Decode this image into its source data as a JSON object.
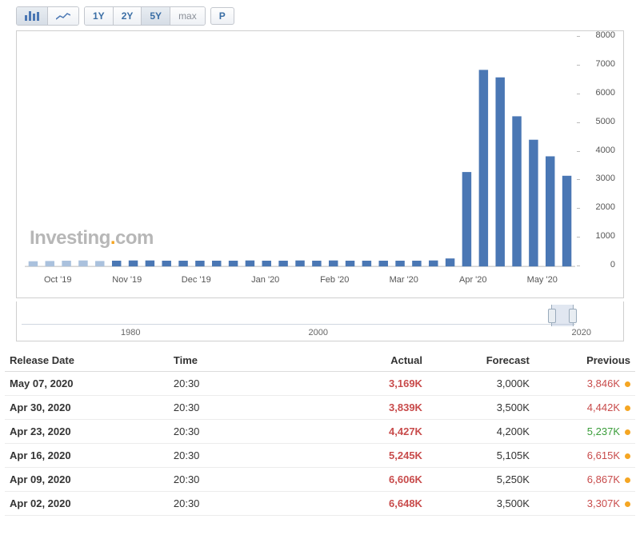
{
  "toolbar": {
    "charttype": {
      "bar": "bar",
      "line": "line",
      "active": "bar"
    },
    "ranges": [
      "1Y",
      "2Y",
      "5Y",
      "max"
    ],
    "active_range": "5Y",
    "P": "P"
  },
  "chart": {
    "type": "bar",
    "ylim": [
      0,
      8000
    ],
    "ytick_step": 1000,
    "x_labels": [
      "Oct '19",
      "Nov '19",
      "Dec '19",
      "Jan '20",
      "Feb '20",
      "Mar '20",
      "Apr '20",
      "May '20"
    ],
    "bar_color": "#4a77b4",
    "bar_color_faded": "#aac1dd",
    "background_color": "#ffffff",
    "border_color": "#cfcfcf",
    "axis_text_color": "#555555",
    "bar_width": 0.55,
    "watermark_text": "Investing.com",
    "watermark_colors": {
      "Investing": "#b7b7b7",
      "dot": "#f5a623",
      "com": "#b7b7b7"
    },
    "data": [
      180,
      190,
      200,
      210,
      190,
      200,
      210,
      210,
      200,
      200,
      200,
      200,
      200,
      210,
      200,
      200,
      210,
      200,
      210,
      200,
      200,
      200,
      200,
      200,
      210,
      280,
      3300,
      6870,
      6610,
      5250,
      4430,
      3850,
      3170
    ],
    "range_selector": {
      "labels": [
        "1980",
        "2000",
        "2020"
      ]
    }
  },
  "table": {
    "columns": [
      "Release Date",
      "Time",
      "Actual",
      "Forecast",
      "Previous"
    ],
    "dot_color": "#f5a623",
    "actual_color": "#c84b4b",
    "rows": [
      {
        "date": "May 07, 2020",
        "time": "20:30",
        "actual": "3,169K",
        "forecast": "3,000K",
        "previous": "3,846K",
        "prev_class": "red"
      },
      {
        "date": "Apr 30, 2020",
        "time": "20:30",
        "actual": "3,839K",
        "forecast": "3,500K",
        "previous": "4,442K",
        "prev_class": "red"
      },
      {
        "date": "Apr 23, 2020",
        "time": "20:30",
        "actual": "4,427K",
        "forecast": "4,200K",
        "previous": "5,237K",
        "prev_class": "green"
      },
      {
        "date": "Apr 16, 2020",
        "time": "20:30",
        "actual": "5,245K",
        "forecast": "5,105K",
        "previous": "6,615K",
        "prev_class": "red"
      },
      {
        "date": "Apr 09, 2020",
        "time": "20:30",
        "actual": "6,606K",
        "forecast": "5,250K",
        "previous": "6,867K",
        "prev_class": "red"
      },
      {
        "date": "Apr 02, 2020",
        "time": "20:30",
        "actual": "6,648K",
        "forecast": "3,500K",
        "previous": "3,307K",
        "prev_class": "red"
      }
    ]
  }
}
